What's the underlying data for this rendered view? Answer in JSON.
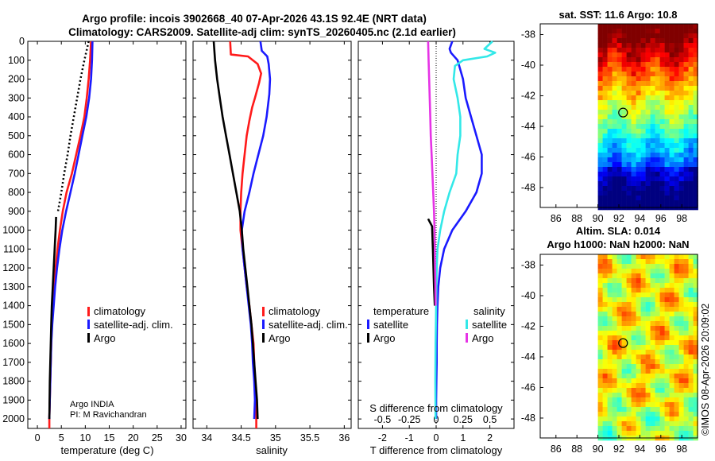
{
  "figure": {
    "title_line1": "Argo profile: incois 3902668_40 07-Apr-2026 43.1S 92.4E (NRT data)",
    "title_line2": "Climatology: CARS2009. Satellite-adj clim: synTS_20260405.nc (2.1d earlier)",
    "side_stamp": "©IMOS 08-Apr-2026 20:09:02",
    "argo_info_line1": "Argo INDIA",
    "argo_info_line2": "PI: M Ravichandran"
  },
  "colors": {
    "climatology": "#ff1a1a",
    "satellite_adj": "#1a1aff",
    "argo": "#000000",
    "temp_sat_diff": "#1a1aff",
    "sal_sat_diff": "#33e8e8",
    "sal_argo_diff": "#e633e6"
  },
  "chart_data": [
    {
      "type": "line",
      "name": "temperature",
      "xlabel": "temperature (deg C)",
      "ylabel": "",
      "xlim": [
        -2,
        31
      ],
      "ylim": [
        2050,
        0
      ],
      "xticks": [
        0,
        5,
        10,
        15,
        20,
        25,
        30
      ],
      "yticks": [
        0,
        100,
        200,
        300,
        400,
        500,
        600,
        700,
        800,
        900,
        1000,
        1100,
        1200,
        1300,
        1400,
        1500,
        1600,
        1700,
        1800,
        1900,
        2000
      ],
      "legend": [
        "climatology",
        "satellite-adj. clim.",
        "Argo"
      ],
      "series": [
        {
          "name": "climatology",
          "color": "#ff1a1a",
          "points": [
            [
              11.2,
              0
            ],
            [
              11.0,
              100
            ],
            [
              10.7,
              200
            ],
            [
              10.3,
              300
            ],
            [
              9.8,
              400
            ],
            [
              9.0,
              500
            ],
            [
              8.1,
              600
            ],
            [
              7.2,
              700
            ],
            [
              6.1,
              800
            ],
            [
              5.3,
              900
            ],
            [
              4.7,
              1000
            ],
            [
              4.2,
              1100
            ],
            [
              3.8,
              1200
            ],
            [
              3.5,
              1300
            ],
            [
              3.2,
              1400
            ],
            [
              3.0,
              1500
            ],
            [
              2.9,
              1600
            ],
            [
              2.8,
              1700
            ],
            [
              2.7,
              1800
            ],
            [
              2.6,
              1900
            ],
            [
              2.5,
              2000
            ],
            [
              2.5,
              2050
            ]
          ]
        },
        {
          "name": "satellite-adj. clim.",
          "color": "#1a1aff",
          "points": [
            [
              11.5,
              0
            ],
            [
              11.4,
              100
            ],
            [
              11.2,
              200
            ],
            [
              10.8,
              300
            ],
            [
              10.2,
              400
            ],
            [
              9.4,
              500
            ],
            [
              8.6,
              600
            ],
            [
              7.8,
              700
            ],
            [
              6.9,
              800
            ],
            [
              6.0,
              900
            ],
            [
              5.2,
              1000
            ],
            [
              4.6,
              1100
            ],
            [
              4.1,
              1200
            ],
            [
              3.7,
              1300
            ],
            [
              3.4,
              1400
            ],
            [
              3.1,
              1500
            ],
            [
              2.9,
              1600
            ],
            [
              2.8,
              1700
            ],
            [
              2.7,
              1800
            ],
            [
              2.6,
              1900
            ],
            [
              2.5,
              2000
            ]
          ]
        },
        {
          "name": "Argo",
          "color": "#000000",
          "points": [
            [
              3.9,
              930
            ],
            [
              3.8,
              1000
            ],
            [
              3.6,
              1100
            ],
            [
              3.4,
              1200
            ],
            [
              3.2,
              1300
            ],
            [
              3.0,
              1400
            ],
            [
              2.9,
              1500
            ],
            [
              2.8,
              1600
            ],
            [
              2.7,
              1700
            ],
            [
              2.6,
              1800
            ],
            [
              2.55,
              1900
            ],
            [
              2.5,
              2000
            ]
          ]
        },
        {
          "name": "Argo-dotted",
          "color": "#000000",
          "dotted": true,
          "points": [
            [
              10.7,
              0
            ],
            [
              9.8,
              100
            ],
            [
              9.0,
              200
            ],
            [
              8.3,
              300
            ],
            [
              7.6,
              400
            ],
            [
              6.9,
              500
            ],
            [
              6.3,
              600
            ],
            [
              5.6,
              700
            ],
            [
              5.0,
              800
            ],
            [
              4.3,
              900
            ]
          ]
        }
      ]
    },
    {
      "type": "line",
      "name": "salinity",
      "xlabel": "salinity",
      "xlim": [
        33.8,
        36.1
      ],
      "ylim": [
        2050,
        0
      ],
      "xticks": [
        34,
        34.5,
        35,
        35.5,
        36
      ],
      "legend": [
        "climatology",
        "satellite-adj. clim.",
        "Argo"
      ],
      "series": [
        {
          "name": "climatology",
          "color": "#ff1a1a",
          "points": [
            [
              34.34,
              0
            ],
            [
              34.35,
              70
            ],
            [
              34.6,
              80
            ],
            [
              34.74,
              120
            ],
            [
              34.79,
              170
            ],
            [
              34.76,
              220
            ],
            [
              34.7,
              300
            ],
            [
              34.66,
              350
            ],
            [
              34.62,
              420
            ],
            [
              34.58,
              500
            ],
            [
              34.55,
              600
            ],
            [
              34.52,
              700
            ],
            [
              34.5,
              800
            ],
            [
              34.49,
              900
            ],
            [
              34.49,
              1000
            ],
            [
              34.52,
              1100
            ],
            [
              34.55,
              1200
            ],
            [
              34.58,
              1300
            ],
            [
              34.62,
              1400
            ],
            [
              34.65,
              1500
            ],
            [
              34.68,
              1600
            ],
            [
              34.69,
              1700
            ],
            [
              34.7,
              1800
            ],
            [
              34.72,
              1900
            ],
            [
              34.72,
              2000
            ],
            [
              34.72,
              2050
            ]
          ]
        },
        {
          "name": "satellite-adj. clim.",
          "color": "#1a1aff",
          "points": [
            [
              34.78,
              0
            ],
            [
              34.8,
              50
            ],
            [
              34.88,
              80
            ],
            [
              34.9,
              120
            ],
            [
              34.92,
              200
            ],
            [
              34.91,
              280
            ],
            [
              34.87,
              400
            ],
            [
              34.82,
              500
            ],
            [
              34.75,
              600
            ],
            [
              34.68,
              700
            ],
            [
              34.62,
              800
            ],
            [
              34.55,
              900
            ],
            [
              34.51,
              1000
            ],
            [
              34.52,
              1100
            ],
            [
              34.55,
              1200
            ],
            [
              34.58,
              1300
            ],
            [
              34.61,
              1400
            ],
            [
              34.64,
              1500
            ],
            [
              34.66,
              1600
            ],
            [
              34.67,
              1700
            ],
            [
              34.69,
              1800
            ],
            [
              34.7,
              1900
            ],
            [
              34.69,
              2000
            ]
          ]
        },
        {
          "name": "Argo",
          "color": "#000000",
          "points": [
            [
              34.1,
              0
            ],
            [
              34.12,
              100
            ],
            [
              34.15,
              200
            ],
            [
              34.19,
              300
            ],
            [
              34.23,
              400
            ],
            [
              34.28,
              500
            ],
            [
              34.33,
              600
            ],
            [
              34.38,
              700
            ],
            [
              34.43,
              800
            ],
            [
              34.48,
              900
            ],
            [
              34.51,
              1000
            ],
            [
              34.53,
              1100
            ],
            [
              34.56,
              1200
            ],
            [
              34.59,
              1300
            ],
            [
              34.62,
              1400
            ],
            [
              34.65,
              1500
            ],
            [
              34.67,
              1600
            ],
            [
              34.69,
              1700
            ],
            [
              34.71,
              1800
            ],
            [
              34.73,
              1900
            ],
            [
              34.74,
              2000
            ]
          ]
        }
      ]
    },
    {
      "type": "line",
      "name": "difference",
      "xlabel": "T difference from climatology",
      "xlabel_top": "S difference from climatology",
      "xlim": [
        -2.9,
        2.9
      ],
      "ylim": [
        2050,
        0
      ],
      "xticks": [
        -2,
        -1,
        0,
        1,
        2
      ],
      "xticks_top": [
        "-0.5",
        "-0.25",
        "0",
        "0.25",
        "0.5"
      ],
      "legend_temperature_title": "temperature",
      "legend_salinity_title": "salinity",
      "legend_temperature": [
        "satellite",
        "Argo"
      ],
      "legend_salinity": [
        "satellite",
        "Argo"
      ],
      "series": [
        {
          "name": "T satellite",
          "color": "#1a1aff",
          "points": [
            [
              0.6,
              0
            ],
            [
              0.5,
              40
            ],
            [
              0.55,
              60
            ],
            [
              0.8,
              100
            ],
            [
              1.0,
              200
            ],
            [
              1.1,
              300
            ],
            [
              1.3,
              400
            ],
            [
              1.5,
              500
            ],
            [
              1.7,
              600
            ],
            [
              1.7,
              700
            ],
            [
              1.5,
              800
            ],
            [
              1.1,
              900
            ],
            [
              0.6,
              1000
            ],
            [
              0.3,
              1100
            ],
            [
              0.15,
              1200
            ],
            [
              0.08,
              1300
            ],
            [
              0.05,
              1400
            ],
            [
              0.03,
              1500
            ],
            [
              0.02,
              1600
            ],
            [
              0.02,
              1700
            ],
            [
              0.01,
              1800
            ],
            [
              0.0,
              1900
            ],
            [
              0.0,
              2000
            ]
          ]
        },
        {
          "name": "T Argo",
          "color": "#000000",
          "points": [
            [
              -0.3,
              940
            ],
            [
              -0.15,
              980
            ],
            [
              -0.12,
              1100
            ],
            [
              -0.1,
              1200
            ],
            [
              -0.08,
              1300
            ],
            [
              -0.05,
              1400
            ]
          ]
        },
        {
          "name": "S satellite",
          "color": "#33e8e8",
          "points": [
            [
              2.1,
              0
            ],
            [
              1.8,
              40
            ],
            [
              2.2,
              60
            ],
            [
              1.9,
              80
            ],
            [
              1.0,
              100
            ],
            [
              0.7,
              130
            ],
            [
              0.65,
              200
            ],
            [
              0.8,
              300
            ],
            [
              0.9,
              400
            ],
            [
              0.9,
              500
            ],
            [
              0.8,
              600
            ],
            [
              0.75,
              700
            ],
            [
              0.5,
              800
            ],
            [
              0.3,
              900
            ],
            [
              0.15,
              1000
            ],
            [
              0.05,
              1100
            ],
            [
              0.02,
              1200
            ],
            [
              0.0,
              1400
            ],
            [
              -0.02,
              1600
            ],
            [
              -0.03,
              1800
            ],
            [
              -0.02,
              2000
            ]
          ]
        },
        {
          "name": "S Argo",
          "color": "#e633e6",
          "points": [
            [
              -0.3,
              0
            ],
            [
              -0.28,
              100
            ],
            [
              -0.26,
              200
            ],
            [
              -0.24,
              300
            ],
            [
              -0.22,
              400
            ],
            [
              -0.2,
              500
            ],
            [
              -0.17,
              600
            ],
            [
              -0.14,
              700
            ],
            [
              -0.11,
              800
            ],
            [
              -0.08,
              900
            ],
            [
              -0.06,
              1000
            ],
            [
              -0.05,
              1100
            ],
            [
              -0.04,
              1200
            ],
            [
              -0.03,
              1300
            ],
            [
              -0.02,
              1400
            ]
          ]
        }
      ]
    },
    {
      "type": "heatmap",
      "name": "sst_map",
      "title": "sat. SST: 11.6 Argo: 10.8",
      "xlim": [
        84.5,
        99.5
      ],
      "ylim": [
        -49.3,
        -37.3
      ],
      "xticks": [
        86,
        88,
        90,
        92,
        94,
        96,
        98
      ],
      "yticks": [
        -38,
        -40,
        -42,
        -44,
        -46,
        -48
      ],
      "marker": [
        92.4,
        -43.1
      ]
    },
    {
      "type": "heatmap",
      "name": "sla_map",
      "title_line1": "Altim. SLA: 0.014",
      "title_line2": "Argo h1000: NaN h2000: NaN",
      "xlim": [
        84.5,
        99.5
      ],
      "ylim": [
        -49.3,
        -37.3
      ],
      "xticks": [
        86,
        88,
        90,
        92,
        94,
        96,
        98
      ],
      "yticks": [
        -38,
        -40,
        -42,
        -44,
        -46,
        -48
      ],
      "marker": [
        92.4,
        -43.1
      ]
    }
  ]
}
